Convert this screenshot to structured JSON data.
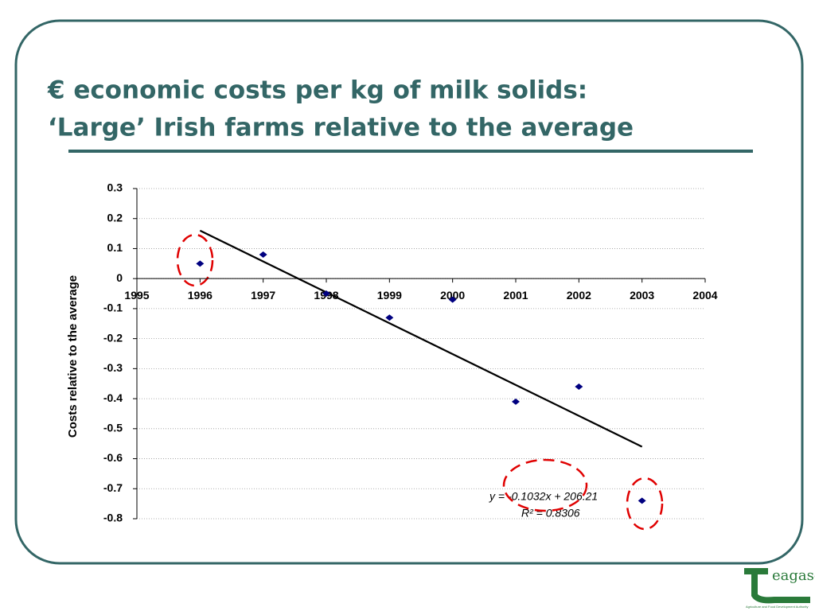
{
  "slide": {
    "title_lines": [
      "€ economic costs per kg of milk solids:",
      "‘Large’ Irish farms relative to the average"
    ],
    "logo_text": "eagasc",
    "logo_subtitle": "Agriculture and Food Development Authority"
  },
  "chart_data": {
    "type": "scatter",
    "y_label": "Costs relative to the average",
    "x": [
      1996,
      1997,
      1998,
      1999,
      2000,
      2001,
      2002,
      2003
    ],
    "values": [
      0.05,
      0.08,
      -0.05,
      -0.13,
      -0.07,
      -0.41,
      -0.36,
      -0.74
    ],
    "color": "#000080",
    "trendline": {
      "x": [
        1996,
        2003
      ],
      "values": [
        0.16,
        -0.56
      ],
      "color": "#000000"
    },
    "annotations": [
      "y = -0.1032x + 206.21",
      "R² = 0.8306"
    ],
    "xlim": [
      1995,
      2004
    ],
    "xticks": [
      1995,
      1996,
      1997,
      1998,
      1999,
      2000,
      2001,
      2002,
      2003,
      2004
    ],
    "ylim": [
      -0.8,
      0.3
    ],
    "yticks": [
      0.3,
      0.2,
      0.1,
      0,
      -0.1,
      -0.2,
      -0.3,
      -0.4,
      -0.5,
      -0.6,
      -0.7,
      -0.8
    ],
    "grid": true
  }
}
